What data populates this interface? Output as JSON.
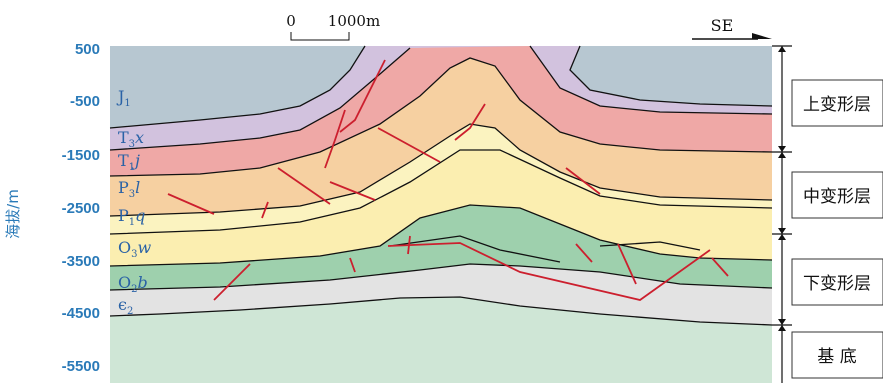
{
  "scale_bar": {
    "start": "0",
    "end": "1000m"
  },
  "direction": {
    "label": "SE"
  },
  "y_axis": {
    "label": "海拔/m",
    "ticks": [
      "500",
      "-500",
      "-1500",
      "-2500",
      "-3500",
      "-4500",
      "-5500"
    ],
    "color": "#2a7ab8"
  },
  "strata": [
    {
      "base": "J",
      "sub": "1",
      "italic": ""
    },
    {
      "base": "T",
      "sub": "3",
      "italic": "x"
    },
    {
      "base": "T",
      "sub": "1",
      "italic": "j"
    },
    {
      "base": "P",
      "sub": "3",
      "italic": "l"
    },
    {
      "base": "P",
      "sub": "1",
      "italic": "q"
    },
    {
      "base": "O",
      "sub": "3",
      "italic": "w"
    },
    {
      "base": "O",
      "sub": "2",
      "italic": "b"
    },
    {
      "base": "ϵ",
      "sub": "2",
      "italic": ""
    }
  ],
  "deformation_layers": [
    "上变形层",
    "中变形层",
    "下变形层",
    "基 底"
  ],
  "colors": {
    "J1": "#b7c7d1",
    "T3x": "#d2c2de",
    "T1j": "#efa8a6",
    "P3l": "#f6d0a1",
    "P1q": "#fbf3c0",
    "O3w": "#fbeeb0",
    "O2b": "#9ed0ad",
    "e2": "#e3e3e3",
    "basement": "#cfe6d6",
    "fault": "#cc1f2e",
    "boundary": "#111111"
  }
}
